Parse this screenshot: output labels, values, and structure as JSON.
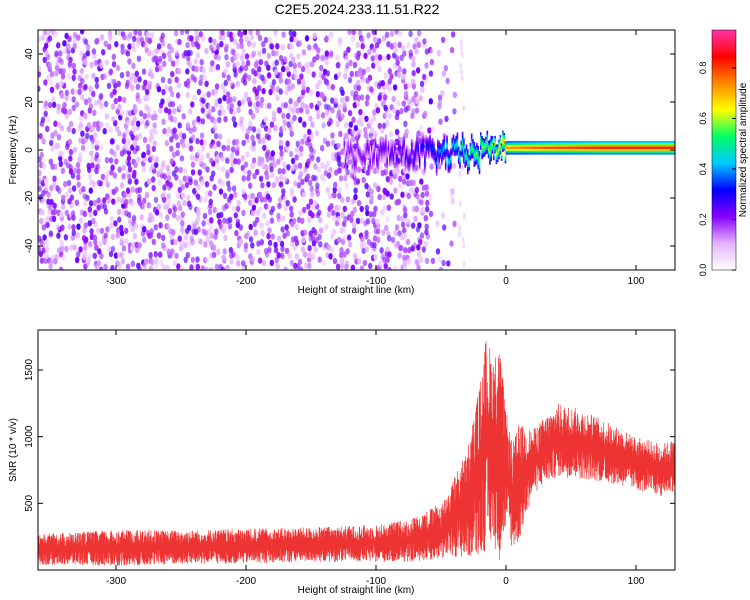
{
  "figure": {
    "title": "C2E5.2024.233.11.51.R22"
  },
  "chart_data": [
    {
      "type": "heatmap",
      "title": "C2E5.2024.233.11.51.R22",
      "xlabel": "Height of straight line (km)",
      "ylabel": "Frequency (Hz)",
      "xlim": [
        -360,
        130
      ],
      "ylim": [
        -50,
        50
      ],
      "x_ticks": [
        "-300",
        "-200",
        "-100",
        "0",
        "100"
      ],
      "y_ticks": [
        "-40",
        "-20",
        "0",
        "20",
        "40"
      ],
      "colorbar": {
        "label": "Normalized spectral amplitude",
        "range": [
          0,
          0.95
        ],
        "ticks": [
          "0.0",
          "0.2",
          "0.4",
          "0.6",
          "0.8"
        ],
        "colors": [
          "#ffffff",
          "#e6b3ff",
          "#8800ff",
          "#0000ff",
          "#00c8ff",
          "#00ff66",
          "#ffff00",
          "#ff8800",
          "#ff0000",
          "#ff33aa"
        ]
      },
      "ridge": [
        {
          "x": -125,
          "amplitude": 0.22
        },
        {
          "x": -100,
          "amplitude": 0.25
        },
        {
          "x": -75,
          "amplitude": 0.3
        },
        {
          "x": -60,
          "amplitude": 0.35
        },
        {
          "x": -50,
          "amplitude": 0.45
        },
        {
          "x": -40,
          "amplitude": 0.5
        },
        {
          "x": -25,
          "amplitude": 0.6
        },
        {
          "x": -10,
          "amplitude": 0.65
        },
        {
          "x": 0,
          "amplitude": 0.8
        },
        {
          "x": 25,
          "amplitude": 0.85
        },
        {
          "x": 75,
          "amplitude": 0.9
        },
        {
          "x": 130,
          "amplitude": 0.9
        }
      ],
      "grid": false,
      "legend": "right colorbar"
    },
    {
      "type": "line",
      "xlabel": "Height of straight line (km)",
      "ylabel": "SNR (10 * v/v)",
      "xlim": [
        -360,
        130
      ],
      "ylim": [
        0,
        1800
      ],
      "x_ticks": [
        "-300",
        "-200",
        "-100",
        "0",
        "100"
      ],
      "y_ticks": [
        "500",
        "1000",
        "1500"
      ],
      "color": "#ee3333",
      "series": [
        {
          "x": [
            -360,
            -300,
            -250,
            -200,
            -150,
            -100,
            -75,
            -50,
            -40,
            -30,
            -20,
            -15,
            -10,
            -5,
            0,
            5,
            10,
            20,
            30,
            40,
            60,
            80,
            100,
            120,
            130
          ],
          "low": [
            40,
            30,
            40,
            50,
            60,
            60,
            60,
            80,
            100,
            80,
            120,
            140,
            200,
            60,
            300,
            150,
            200,
            550,
            650,
            700,
            680,
            650,
            600,
            550,
            600
          ],
          "high": [
            270,
            300,
            300,
            310,
            320,
            340,
            380,
            500,
            700,
            900,
            1400,
            1780,
            1600,
            1700,
            1200,
            950,
            1100,
            1050,
            1150,
            1250,
            1200,
            1100,
            1000,
            950,
            980
          ]
        }
      ],
      "grid": false,
      "legend": "none"
    }
  ]
}
